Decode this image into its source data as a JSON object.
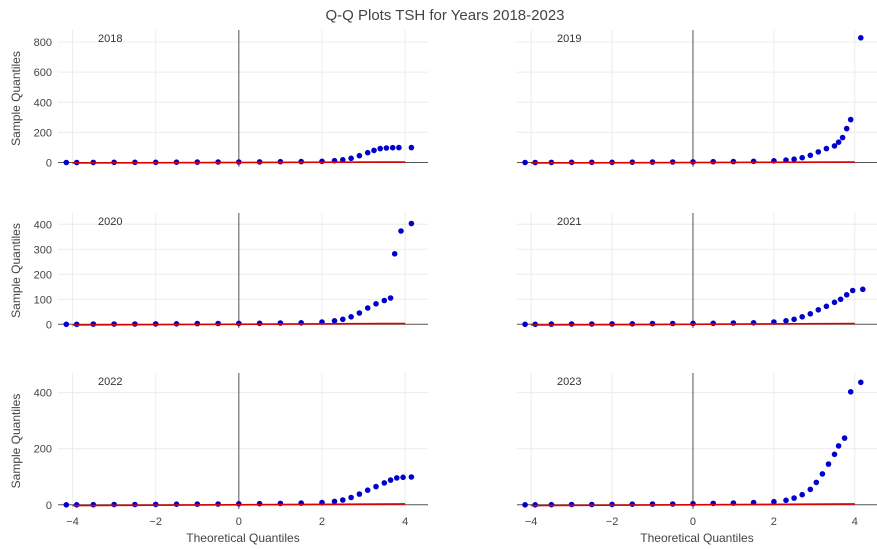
{
  "chart_data": {
    "type": "scatter",
    "title": "Q-Q Plots TSH for Years 2018-2023",
    "xlabel": "Theoretical Quantiles",
    "ylabel": "Sample Quantiles",
    "grid": true,
    "colors": {
      "points": "#0000cc",
      "reference_line": "#dd0000",
      "zero_axis": "#555555"
    },
    "x_ticks": [
      -4,
      -2,
      0,
      2,
      4
    ],
    "xlim": [
      -4.35,
      4.55
    ],
    "panels": [
      {
        "name": "2018",
        "ylim": [
          -30,
          880
        ],
        "y_ticks": [
          0,
          200,
          400,
          600,
          800
        ],
        "reference_line": {
          "x": [
            -4.0,
            4.0
          ],
          "y": [
            -3,
            3
          ]
        },
        "points": [
          [
            -4.15,
            0
          ],
          [
            -3.9,
            0
          ],
          [
            -3.5,
            0.5
          ],
          [
            -3.0,
            1
          ],
          [
            -2.5,
            1
          ],
          [
            -2.0,
            1.5
          ],
          [
            -1.5,
            2
          ],
          [
            -1.0,
            2.5
          ],
          [
            -0.5,
            3
          ],
          [
            0.0,
            3.5
          ],
          [
            0.5,
            4
          ],
          [
            1.0,
            5
          ],
          [
            1.5,
            6
          ],
          [
            2.0,
            8
          ],
          [
            2.3,
            12
          ],
          [
            2.5,
            18
          ],
          [
            2.7,
            28
          ],
          [
            2.9,
            45
          ],
          [
            3.1,
            65
          ],
          [
            3.25,
            80
          ],
          [
            3.4,
            92
          ],
          [
            3.55,
            96
          ],
          [
            3.7,
            98
          ],
          [
            3.85,
            99
          ],
          [
            4.15,
            99
          ]
        ]
      },
      {
        "name": "2019",
        "ylim": [
          -30,
          880
        ],
        "y_ticks": [
          0,
          200,
          400,
          600,
          800
        ],
        "reference_line": {
          "x": [
            -4.0,
            4.0
          ],
          "y": [
            -3,
            3
          ]
        },
        "points": [
          [
            -4.15,
            0
          ],
          [
            -3.9,
            0
          ],
          [
            -3.5,
            0.5
          ],
          [
            -3.0,
            1
          ],
          [
            -2.5,
            1
          ],
          [
            -2.0,
            1.5
          ],
          [
            -1.5,
            2
          ],
          [
            -1.0,
            2.5
          ],
          [
            -0.5,
            3
          ],
          [
            0.0,
            4
          ],
          [
            0.5,
            5
          ],
          [
            1.0,
            6
          ],
          [
            1.5,
            8
          ],
          [
            2.0,
            11
          ],
          [
            2.3,
            16
          ],
          [
            2.5,
            22
          ],
          [
            2.7,
            32
          ],
          [
            2.9,
            48
          ],
          [
            3.1,
            70
          ],
          [
            3.3,
            92
          ],
          [
            3.5,
            110
          ],
          [
            3.6,
            135
          ],
          [
            3.7,
            165
          ],
          [
            3.8,
            225
          ],
          [
            3.9,
            285
          ],
          [
            4.15,
            828
          ]
        ]
      },
      {
        "name": "2020",
        "ylim": [
          -15,
          445
        ],
        "y_ticks": [
          0,
          100,
          200,
          300,
          400
        ],
        "reference_line": {
          "x": [
            -4.0,
            4.0
          ],
          "y": [
            -3,
            3
          ]
        },
        "points": [
          [
            -4.15,
            0
          ],
          [
            -3.9,
            0
          ],
          [
            -3.5,
            0.5
          ],
          [
            -3.0,
            1
          ],
          [
            -2.5,
            1
          ],
          [
            -2.0,
            1.5
          ],
          [
            -1.5,
            2
          ],
          [
            -1.0,
            2.5
          ],
          [
            -0.5,
            3
          ],
          [
            0.0,
            3.5
          ],
          [
            0.5,
            4
          ],
          [
            1.0,
            5
          ],
          [
            1.5,
            6
          ],
          [
            2.0,
            9
          ],
          [
            2.3,
            14
          ],
          [
            2.5,
            20
          ],
          [
            2.7,
            30
          ],
          [
            2.9,
            45
          ],
          [
            3.1,
            65
          ],
          [
            3.3,
            82
          ],
          [
            3.5,
            95
          ],
          [
            3.65,
            105
          ],
          [
            3.75,
            282
          ],
          [
            3.9,
            373
          ],
          [
            4.15,
            403
          ]
        ]
      },
      {
        "name": "2021",
        "ylim": [
          -15,
          445
        ],
        "y_ticks": [
          0,
          100,
          200,
          300,
          400
        ],
        "reference_line": {
          "x": [
            -4.0,
            4.0
          ],
          "y": [
            -3,
            3
          ]
        },
        "points": [
          [
            -4.15,
            0
          ],
          [
            -3.9,
            0
          ],
          [
            -3.5,
            0.5
          ],
          [
            -3.0,
            1
          ],
          [
            -2.5,
            1
          ],
          [
            -2.0,
            1.5
          ],
          [
            -1.5,
            2
          ],
          [
            -1.0,
            2.5
          ],
          [
            -0.5,
            3
          ],
          [
            0.0,
            3.5
          ],
          [
            0.5,
            4
          ],
          [
            1.0,
            5
          ],
          [
            1.5,
            6
          ],
          [
            2.0,
            9
          ],
          [
            2.3,
            14
          ],
          [
            2.5,
            20
          ],
          [
            2.7,
            30
          ],
          [
            2.9,
            42
          ],
          [
            3.1,
            58
          ],
          [
            3.3,
            72
          ],
          [
            3.5,
            88
          ],
          [
            3.65,
            100
          ],
          [
            3.8,
            118
          ],
          [
            3.95,
            135
          ],
          [
            4.2,
            140
          ]
        ]
      },
      {
        "name": "2022",
        "ylim": [
          -15,
          470
        ],
        "y_ticks": [
          0,
          200,
          400
        ],
        "reference_line": {
          "x": [
            -4.0,
            4.0
          ],
          "y": [
            -3,
            3
          ]
        },
        "points": [
          [
            -4.15,
            0
          ],
          [
            -3.9,
            0
          ],
          [
            -3.5,
            0.5
          ],
          [
            -3.0,
            1
          ],
          [
            -2.5,
            1
          ],
          [
            -2.0,
            1.5
          ],
          [
            -1.5,
            2
          ],
          [
            -1.0,
            2.5
          ],
          [
            -0.5,
            3
          ],
          [
            0.0,
            3.5
          ],
          [
            0.5,
            4
          ],
          [
            1.0,
            5
          ],
          [
            1.5,
            6
          ],
          [
            2.0,
            8
          ],
          [
            2.3,
            12
          ],
          [
            2.5,
            17
          ],
          [
            2.7,
            26
          ],
          [
            2.9,
            38
          ],
          [
            3.1,
            52
          ],
          [
            3.3,
            65
          ],
          [
            3.5,
            78
          ],
          [
            3.65,
            88
          ],
          [
            3.8,
            96
          ],
          [
            3.95,
            98
          ],
          [
            4.15,
            99
          ]
        ]
      },
      {
        "name": "2023",
        "ylim": [
          -15,
          470
        ],
        "y_ticks": [
          0,
          200,
          400
        ],
        "reference_line": {
          "x": [
            -4.0,
            4.0
          ],
          "y": [
            -3,
            3
          ]
        },
        "points": [
          [
            -4.15,
            0
          ],
          [
            -3.9,
            0
          ],
          [
            -3.5,
            0.5
          ],
          [
            -3.0,
            1
          ],
          [
            -2.5,
            1
          ],
          [
            -2.0,
            1.5
          ],
          [
            -1.5,
            2
          ],
          [
            -1.0,
            2.5
          ],
          [
            -0.5,
            3
          ],
          [
            0.0,
            4
          ],
          [
            0.5,
            5
          ],
          [
            1.0,
            6
          ],
          [
            1.5,
            8
          ],
          [
            2.0,
            11
          ],
          [
            2.3,
            16
          ],
          [
            2.5,
            24
          ],
          [
            2.7,
            36
          ],
          [
            2.9,
            55
          ],
          [
            3.05,
            80
          ],
          [
            3.2,
            110
          ],
          [
            3.35,
            145
          ],
          [
            3.5,
            180
          ],
          [
            3.6,
            210
          ],
          [
            3.75,
            238
          ],
          [
            3.9,
            403
          ],
          [
            4.15,
            437
          ]
        ]
      }
    ]
  }
}
